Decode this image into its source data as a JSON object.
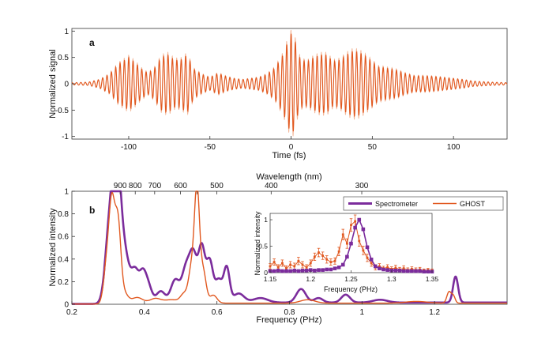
{
  "colors": {
    "orange": "#e1581f",
    "orange_light": "#f0a27a",
    "purple": "#7b2c9c",
    "axis": "#333333"
  },
  "panel_a": {
    "label": "a",
    "chart_data": {
      "type": "line",
      "title": "",
      "xlabel": "Time (fs)",
      "ylabel": "Normalized signal",
      "xlim": [
        -135,
        133
      ],
      "ylim": [
        -1.05,
        1.05
      ],
      "xticks": [
        -100,
        -50,
        0,
        50,
        100
      ],
      "yticks": [
        -1,
        -0.5,
        0,
        0.5,
        1
      ],
      "xtick_labels": [
        "-100",
        "-50",
        "0",
        "50",
        "100"
      ],
      "ytick_labels": [
        "-1",
        "-0.5",
        "0",
        "0.5",
        "1"
      ],
      "series": [
        {
          "name": "GHOST",
          "color": "#e1581f",
          "carrier_period_fs": 2.7,
          "envelope": {
            "t": [
              -135,
              -125,
              -118,
              -112,
              -106,
              -100,
              -96,
              -92,
              -88,
              -84,
              -80,
              -76,
              -72,
              -68,
              -64,
              -60,
              -55,
              -50,
              -45,
              -40,
              -35,
              -30,
              -25,
              -20,
              -15,
              -10,
              -5,
              -2,
              0,
              2,
              4,
              6,
              10,
              14,
              18,
              22,
              26,
              30,
              34,
              38,
              42,
              46,
              50,
              54,
              58,
              62,
              66,
              70,
              76,
              82,
              88,
              94,
              100,
              106,
              112,
              118,
              124,
              133
            ],
            "a": [
              0.02,
              0.03,
              0.08,
              0.18,
              0.38,
              0.5,
              0.4,
              0.28,
              0.2,
              0.3,
              0.5,
              0.55,
              0.45,
              0.45,
              0.55,
              0.28,
              0.18,
              0.12,
              0.2,
              0.14,
              0.1,
              0.08,
              0.1,
              0.12,
              0.18,
              0.3,
              0.55,
              0.8,
              0.95,
              0.88,
              0.6,
              0.45,
              0.42,
              0.5,
              0.55,
              0.55,
              0.42,
              0.45,
              0.55,
              0.62,
              0.6,
              0.52,
              0.42,
              0.32,
              0.3,
              0.28,
              0.25,
              0.2,
              0.15,
              0.15,
              0.14,
              0.12,
              0.1,
              0.08,
              0.05,
              0.04,
              0.03,
              0.02
            ]
          }
        }
      ]
    }
  },
  "panel_b": {
    "label": "b",
    "chart_data": {
      "type": "line",
      "title": "",
      "xlabel": "Frequency (PHz)",
      "ylabel": "Normalized intensity",
      "top_xlabel": "Wavelength (nm)",
      "xlim": [
        0.2,
        1.4
      ],
      "ylim": [
        0,
        1
      ],
      "xticks": [
        0.2,
        0.4,
        0.6,
        0.8,
        1.0,
        1.2
      ],
      "yticks": [
        0,
        0.2,
        0.4,
        0.6,
        0.8,
        1
      ],
      "xtick_labels": [
        "0.2",
        "0.4",
        "0.6",
        "0.8",
        "1",
        "1.2"
      ],
      "ytick_labels": [
        "0",
        "0.2",
        "0.4",
        "0.6",
        "0.8",
        "1"
      ],
      "top_ticks_nm": [
        900,
        800,
        700,
        600,
        500,
        400,
        300
      ],
      "top_tick_labels": [
        "900",
        "800",
        "700",
        "600",
        "500",
        "400",
        "300"
      ],
      "top_minor_ticks_nm": [
        550
      ],
      "legend": {
        "position": "top-right",
        "entries": [
          "Spectrometer",
          "GHOST"
        ]
      },
      "series": [
        {
          "name": "Spectrometer",
          "color": "#7b2c9c",
          "baseline": 0.015,
          "peaks": [
            {
              "f": 0.305,
              "h": 0.7,
              "w": 0.012
            },
            {
              "f": 0.323,
              "h": 0.98,
              "w": 0.01
            },
            {
              "f": 0.338,
              "h": 0.45,
              "w": 0.013
            },
            {
              "f": 0.355,
              "h": 0.15,
              "w": 0.012
            },
            {
              "f": 0.375,
              "h": 0.25,
              "w": 0.01
            },
            {
              "f": 0.395,
              "h": 0.22,
              "w": 0.009
            },
            {
              "f": 0.41,
              "h": 0.15,
              "w": 0.01
            },
            {
              "f": 0.445,
              "h": 0.1,
              "w": 0.012
            },
            {
              "f": 0.485,
              "h": 0.2,
              "w": 0.012
            },
            {
              "f": 0.515,
              "h": 0.3,
              "w": 0.011
            },
            {
              "f": 0.535,
              "h": 0.4,
              "w": 0.01
            },
            {
              "f": 0.558,
              "h": 0.48,
              "w": 0.009
            },
            {
              "f": 0.58,
              "h": 0.36,
              "w": 0.009
            },
            {
              "f": 0.605,
              "h": 0.2,
              "w": 0.01
            },
            {
              "f": 0.627,
              "h": 0.3,
              "w": 0.008
            },
            {
              "f": 0.66,
              "h": 0.08,
              "w": 0.015
            },
            {
              "f": 0.72,
              "h": 0.04,
              "w": 0.02
            },
            {
              "f": 0.832,
              "h": 0.12,
              "w": 0.013
            },
            {
              "f": 0.88,
              "h": 0.04,
              "w": 0.012
            },
            {
              "f": 0.955,
              "h": 0.07,
              "w": 0.012
            },
            {
              "f": 1.05,
              "h": 0.025,
              "w": 0.02
            },
            {
              "f": 1.258,
              "h": 0.23,
              "w": 0.007
            }
          ]
        },
        {
          "name": "GHOST",
          "color": "#e1581f",
          "baseline": 0.01,
          "peaks": [
            {
              "f": 0.295,
              "h": 0.3,
              "w": 0.008
            },
            {
              "f": 0.31,
              "h": 0.85,
              "w": 0.008
            },
            {
              "f": 0.327,
              "h": 0.7,
              "w": 0.008
            },
            {
              "f": 0.345,
              "h": 0.08,
              "w": 0.01
            },
            {
              "f": 0.38,
              "h": 0.05,
              "w": 0.015
            },
            {
              "f": 0.43,
              "h": 0.04,
              "w": 0.015
            },
            {
              "f": 0.475,
              "h": 0.03,
              "w": 0.02
            },
            {
              "f": 0.51,
              "h": 0.08,
              "w": 0.01
            },
            {
              "f": 0.53,
              "h": 0.3,
              "w": 0.008
            },
            {
              "f": 0.545,
              "h": 0.98,
              "w": 0.007
            },
            {
              "f": 0.562,
              "h": 0.28,
              "w": 0.008
            },
            {
              "f": 0.59,
              "h": 0.07,
              "w": 0.01
            },
            {
              "f": 0.85,
              "h": 0.03,
              "w": 0.02
            },
            {
              "f": 1.15,
              "h": 0.015,
              "w": 0.03
            },
            {
              "f": 1.24,
              "h": 0.1,
              "w": 0.006
            },
            {
              "f": 1.252,
              "h": 0.06,
              "w": 0.005
            }
          ]
        }
      ]
    }
  },
  "inset": {
    "chart_data": {
      "type": "line",
      "xlabel": "Frequency (PHz)",
      "ylabel": "Normalized intensity",
      "xlim": [
        1.15,
        1.35
      ],
      "ylim": [
        0,
        1.12
      ],
      "xticks": [
        1.15,
        1.2,
        1.25,
        1.3,
        1.35
      ],
      "yticks": [
        0,
        0.5,
        1
      ],
      "xtick_labels": [
        "1.15",
        "1.2",
        "1.25",
        "1.3",
        "1.35"
      ],
      "ytick_labels": [
        "0",
        "0.5",
        "1"
      ],
      "series": [
        {
          "name": "Spectrometer",
          "color": "#7b2c9c",
          "x": [
            1.15,
            1.155,
            1.16,
            1.165,
            1.17,
            1.175,
            1.18,
            1.185,
            1.19,
            1.195,
            1.2,
            1.205,
            1.21,
            1.215,
            1.22,
            1.225,
            1.23,
            1.235,
            1.24,
            1.245,
            1.25,
            1.255,
            1.26,
            1.265,
            1.27,
            1.275,
            1.28,
            1.285,
            1.29,
            1.295,
            1.3,
            1.305,
            1.31,
            1.315,
            1.32,
            1.325,
            1.33,
            1.335,
            1.34,
            1.345,
            1.35
          ],
          "y": [
            0.03,
            0.03,
            0.04,
            0.03,
            0.03,
            0.03,
            0.04,
            0.03,
            0.04,
            0.04,
            0.05,
            0.04,
            0.05,
            0.05,
            0.06,
            0.06,
            0.08,
            0.1,
            0.15,
            0.3,
            0.55,
            0.85,
            1.0,
            0.82,
            0.48,
            0.25,
            0.12,
            0.08,
            0.06,
            0.05,
            0.04,
            0.04,
            0.04,
            0.03,
            0.03,
            0.03,
            0.03,
            0.03,
            0.02,
            0.02,
            0.02
          ]
        },
        {
          "name": "GHOST",
          "color": "#e1581f",
          "x": [
            1.15,
            1.155,
            1.16,
            1.165,
            1.17,
            1.175,
            1.18,
            1.185,
            1.19,
            1.195,
            1.2,
            1.205,
            1.21,
            1.215,
            1.22,
            1.225,
            1.23,
            1.235,
            1.24,
            1.245,
            1.25,
            1.255,
            1.26,
            1.265,
            1.27,
            1.275,
            1.28,
            1.285,
            1.29,
            1.295,
            1.3,
            1.305,
            1.31,
            1.315,
            1.32,
            1.325,
            1.33,
            1.335,
            1.34,
            1.345,
            1.35
          ],
          "y": [
            0.12,
            0.2,
            0.1,
            0.18,
            0.08,
            0.15,
            0.12,
            0.22,
            0.15,
            0.1,
            0.18,
            0.3,
            0.38,
            0.32,
            0.25,
            0.2,
            0.22,
            0.4,
            0.72,
            0.55,
            0.9,
            0.97,
            0.6,
            0.42,
            0.28,
            0.18,
            0.1,
            0.12,
            0.08,
            0.1,
            0.07,
            0.09,
            0.06,
            0.08,
            0.05,
            0.07,
            0.05,
            0.06,
            0.04,
            0.05,
            0.04
          ],
          "err": [
            0.05,
            0.06,
            0.05,
            0.06,
            0.05,
            0.06,
            0.06,
            0.07,
            0.06,
            0.05,
            0.06,
            0.07,
            0.08,
            0.07,
            0.07,
            0.06,
            0.06,
            0.08,
            0.1,
            0.09,
            0.12,
            0.12,
            0.1,
            0.08,
            0.07,
            0.06,
            0.05,
            0.05,
            0.04,
            0.05,
            0.04,
            0.05,
            0.04,
            0.05,
            0.04,
            0.04,
            0.04,
            0.04,
            0.03,
            0.03,
            0.03
          ]
        }
      ]
    }
  }
}
